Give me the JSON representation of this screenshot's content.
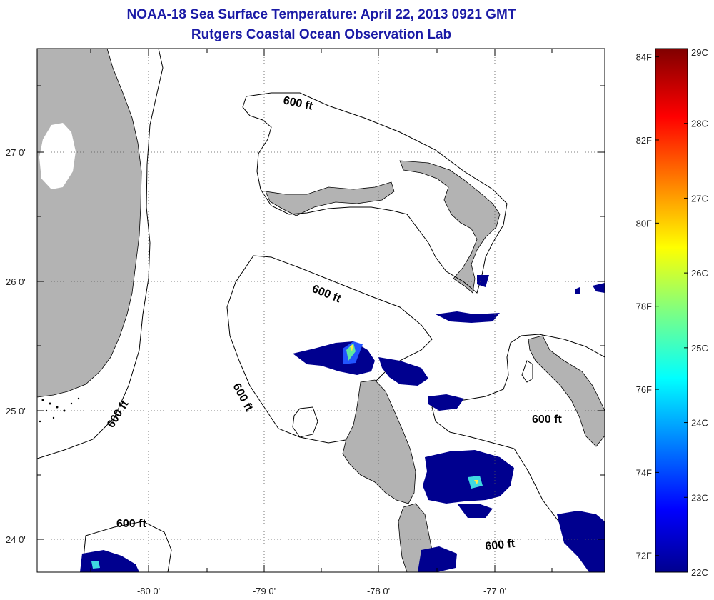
{
  "title": {
    "line1": "NOAA-18 Sea Surface Temperature:  April 22, 2013 0921 GMT",
    "line2": "Rutgers Coastal Ocean Observation Lab"
  },
  "axes": {
    "lat_ticks": [
      "27 0'",
      "26 0'",
      "25 0'",
      "24 0'"
    ],
    "lon_ticks": [
      "-80 0'",
      "-79 0'",
      "-78 0'",
      "-77 0'"
    ]
  },
  "contour_labels": [
    "600 ft",
    "600 ft",
    "600 ft",
    "600 ft",
    "600 ft",
    "600 ft"
  ],
  "colorbar": {
    "celsius": [
      "29C",
      "28C",
      "27C",
      "26C",
      "25C",
      "24C",
      "23C",
      "22C"
    ],
    "fahrenheit": [
      "84F",
      "82F",
      "80F",
      "78F",
      "76F",
      "74F",
      "72F"
    ],
    "celsius_range": [
      22,
      29
    ],
    "fahrenheit_range": [
      72,
      84
    ]
  },
  "colors": {
    "title": "#1a1aa6",
    "land": "#b3b3b3",
    "cold_water": "#00008f",
    "mid_water": "#2255ff"
  }
}
